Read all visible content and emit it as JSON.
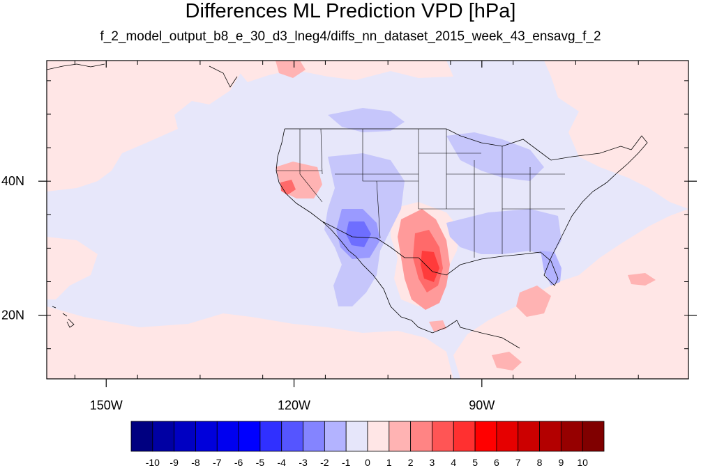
{
  "title": "Differences ML Prediction VPD [hPa]",
  "subtitle": "f_2_model_output_b8_e_30_d3_lneg4/diffs_nn_dataset_2015_week_43_ensavg_f_2",
  "axes": {
    "x_ticks": [
      {
        "value": -150,
        "label": "150W"
      },
      {
        "value": -120,
        "label": "120W"
      },
      {
        "value": -90,
        "label": "90W"
      }
    ],
    "y_ticks": [
      {
        "value": 40,
        "label": "40N"
      },
      {
        "value": 20,
        "label": "20N"
      }
    ],
    "lon_range": [
      -159.5,
      -57
    ],
    "lat_range": [
      10.5,
      58
    ]
  },
  "colorbar": {
    "labels": [
      "-10",
      "-9",
      "-8",
      "-7",
      "-6",
      "-5",
      "-4",
      "-3",
      "-2",
      "-1",
      "0",
      "1",
      "2",
      "3",
      "4",
      "5",
      "6",
      "7",
      "8",
      "9",
      "10"
    ],
    "colors": [
      "#000080",
      "#0000a3",
      "#0000c2",
      "#0000db",
      "#0000f0",
      "#0000ff",
      "#3030ff",
      "#5555ff",
      "#8484ff",
      "#b3b3ff",
      "#e6e6fa",
      "#ffe6e6",
      "#ffb3b3",
      "#ff8484",
      "#ff5555",
      "#ff3030",
      "#ff0000",
      "#e60000",
      "#cc0000",
      "#b30000",
      "#960000",
      "#800000"
    ]
  },
  "background_color": "#e7e7fa"
}
